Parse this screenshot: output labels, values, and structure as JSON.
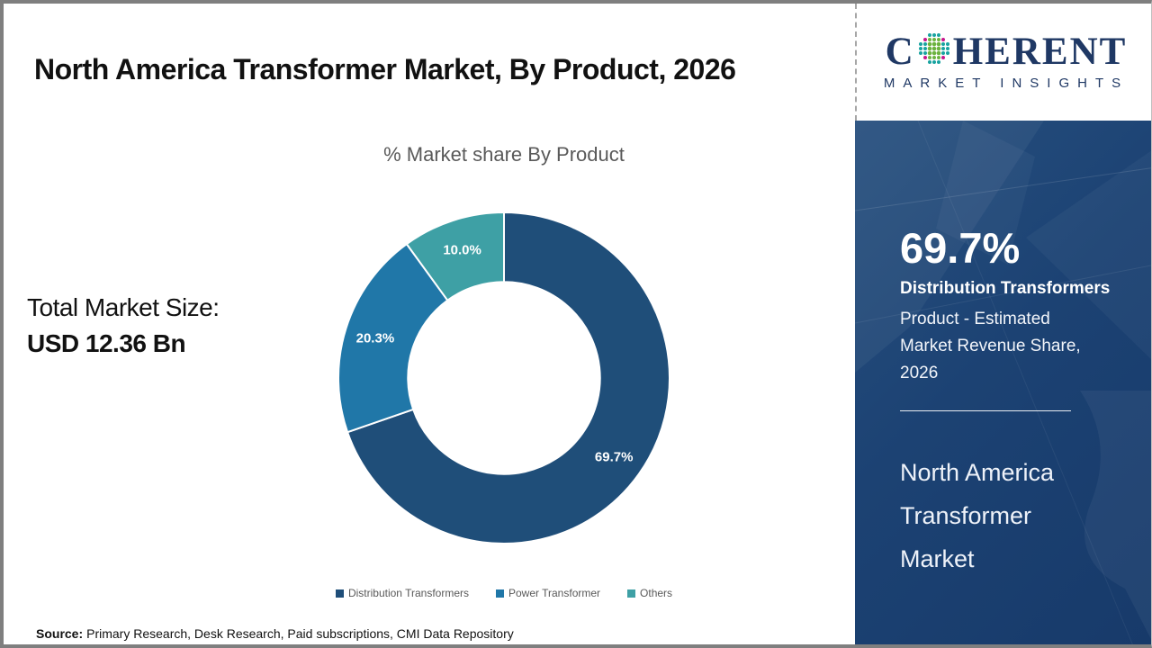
{
  "header": {
    "title": "North America Transformer Market, By Product, 2026"
  },
  "chart": {
    "subtitle": "% Market share By Product"
  },
  "stats": {
    "total_label": "Total Market Size:",
    "total_value": "USD 12.36 Bn"
  },
  "source": {
    "label": "Source:",
    "text": "Primary Research, Desk Research, Paid subscriptions, CMI Data Repository"
  },
  "logo": {
    "word_start": "C",
    "word_end": "HERENT",
    "tagline": "MARKET INSIGHTS"
  },
  "sidebar": {
    "stat_value": "69.7%",
    "stat_title": "Distribution Transformers",
    "stat_desc": "Product - Estimated Market Revenue Share, 2026",
    "market_name": "North America Transformer Market"
  },
  "chart_data": {
    "type": "pie",
    "variant": "donut",
    "title": "% Market share By Product",
    "categories": [
      "Distribution Transformers",
      "Power Transformer",
      "Others"
    ],
    "values": [
      69.7,
      20.3,
      10.0
    ],
    "labels": [
      "69.7%",
      "20.3%",
      "10.0%"
    ],
    "colors": [
      "#1F4E79",
      "#2077A8",
      "#3EA0A5"
    ],
    "start_angle_deg": 0,
    "direction": "clockwise",
    "donut_hole_ratio": 0.58,
    "label_radius": 150,
    "legend_position": "bottom",
    "total_market_size": "USD 12.36 Bn"
  },
  "theme": {
    "accent_navy": "#1F4E79",
    "accent_blue": "#2077A8",
    "accent_teal": "#3EA0A5",
    "panel_navy": "#1C4273",
    "logo_navy": "#1F3864",
    "logo_dot_green": "#6CB33F",
    "logo_dot_teal": "#18A3A0",
    "logo_dot_magenta": "#C6168D",
    "text_gray": "#595959"
  }
}
